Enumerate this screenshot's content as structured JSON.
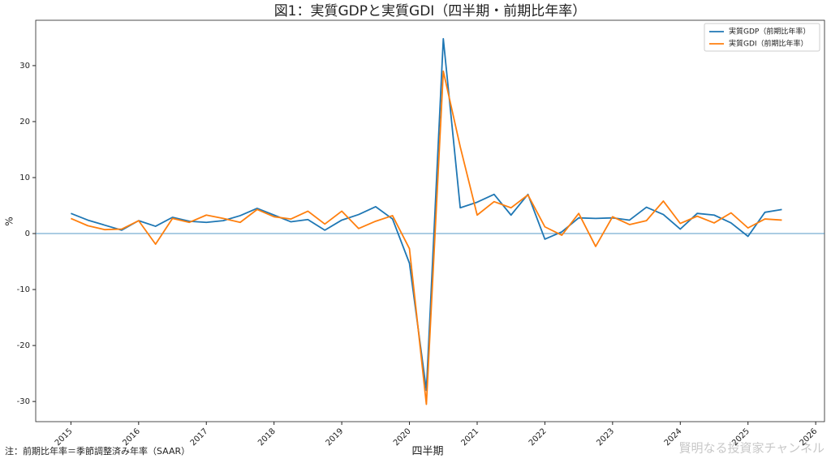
{
  "chart_data": {
    "type": "line",
    "title": "図1：実質GDPと実質GDI（四半期・前期比年率）",
    "x_label": "四半期",
    "y_label": "%",
    "note": "注：前期比年率＝季節調整済み年率（SAAR）",
    "watermark": "賢明なる投資家チャンネル",
    "x": [
      2015,
      2015.25,
      2015.5,
      2015.75,
      2016,
      2016.25,
      2016.5,
      2016.75,
      2017,
      2017.25,
      2017.5,
      2017.75,
      2018,
      2018.25,
      2018.5,
      2018.75,
      2019,
      2019.25,
      2019.5,
      2019.75,
      2020,
      2020.25,
      2020.5,
      2020.75,
      2021,
      2021.25,
      2021.5,
      2021.75,
      2022,
      2022.25,
      2022.5,
      2022.75,
      2023,
      2023.25,
      2023.5,
      2023.75,
      2024,
      2024.25,
      2024.5,
      2024.75,
      2025,
      2025.25,
      2025.5
    ],
    "series": [
      {
        "name": "実質GDP（前期比年率）",
        "color": "#1f77b4",
        "values": [
          3.6,
          2.4,
          1.5,
          0.6,
          2.3,
          1.3,
          2.9,
          2.2,
          2.0,
          2.3,
          3.2,
          4.5,
          3.3,
          2.1,
          2.5,
          0.6,
          2.4,
          3.4,
          4.8,
          2.6,
          -5.3,
          -28.0,
          34.8,
          4.6,
          5.6,
          7.0,
          3.3,
          7.0,
          -1.0,
          0.3,
          2.8,
          2.7,
          2.8,
          2.4,
          4.7,
          3.4,
          0.8,
          3.6,
          3.3,
          1.9,
          -0.5,
          3.8,
          4.3
        ]
      },
      {
        "name": "実質GDI（前期比年率）",
        "color": "#ff7f0e",
        "values": [
          2.7,
          1.4,
          0.7,
          0.8,
          2.3,
          -1.9,
          2.7,
          2.0,
          3.3,
          2.7,
          2.0,
          4.3,
          3.0,
          2.6,
          4.0,
          1.7,
          4.0,
          0.9,
          2.2,
          3.2,
          -2.7,
          -30.5,
          29.0,
          15.5,
          3.3,
          5.7,
          4.6,
          6.9,
          1.2,
          -0.3,
          3.6,
          -2.3,
          3.0,
          1.6,
          2.3,
          5.8,
          1.8,
          3.1,
          1.9,
          3.7,
          1.0,
          2.6,
          2.4
        ]
      }
    ],
    "xlim": [
      2014.48,
      2026.13
    ],
    "xticks": [
      2015,
      2016,
      2017,
      2018,
      2019,
      2020,
      2021,
      2022,
      2023,
      2024,
      2025,
      2026
    ],
    "ylim": [
      -33.6,
      38.1
    ],
    "yticks": [
      -30,
      -20,
      -10,
      0,
      10,
      20,
      30
    ],
    "axhline": 0,
    "axhline_color": "#1f77b4",
    "legend": "upper right",
    "grid": false
  }
}
